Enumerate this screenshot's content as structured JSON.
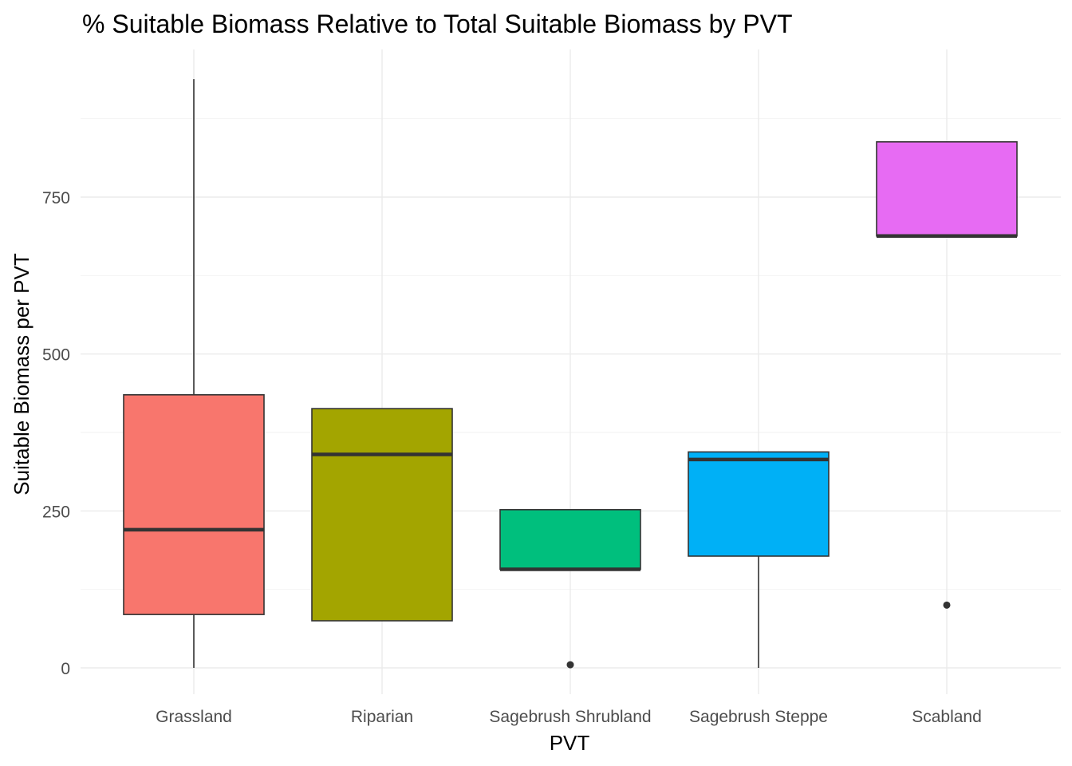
{
  "chart_data": {
    "type": "boxplot",
    "title": "% Suitable Biomass Relative to Total Suitable Biomass by PVT",
    "xlabel": "PVT",
    "ylabel": "Suitable Biomass per PVT",
    "ylim": [
      -40,
      985
    ],
    "yticks": [
      0,
      250,
      500,
      750
    ],
    "ytick_labels": [
      "0",
      "250",
      "500",
      "750"
    ],
    "grid": true,
    "legend": "none",
    "categories": [
      "Grassland",
      "Riparian",
      "Sagebrush Shrubland",
      "Sagebrush Steppe",
      "Scabland"
    ],
    "boxes": [
      {
        "category": "Grassland",
        "whisker_low": 0,
        "q1": 85,
        "median": 220,
        "q3": 435,
        "whisker_high": 938,
        "outliers": [],
        "color": "#F8766D"
      },
      {
        "category": "Riparian",
        "whisker_low": 75,
        "q1": 75,
        "median": 340,
        "q3": 413,
        "whisker_high": 413,
        "outliers": [],
        "color": "#A3A500"
      },
      {
        "category": "Sagebrush Shrubland",
        "whisker_low": 157,
        "q1": 157,
        "median": 157,
        "q3": 252,
        "whisker_high": 252,
        "outliers": [
          5
        ],
        "color": "#00BF7D"
      },
      {
        "category": "Sagebrush Steppe",
        "whisker_low": 0,
        "q1": 178,
        "median": 332,
        "q3": 344,
        "whisker_high": 344,
        "outliers": [],
        "color": "#00B0F6"
      },
      {
        "category": "Scabland",
        "whisker_low": 688,
        "q1": 688,
        "median": 688,
        "q3": 838,
        "whisker_high": 838,
        "outliers": [
          100
        ],
        "color": "#E76BF3"
      }
    ]
  }
}
